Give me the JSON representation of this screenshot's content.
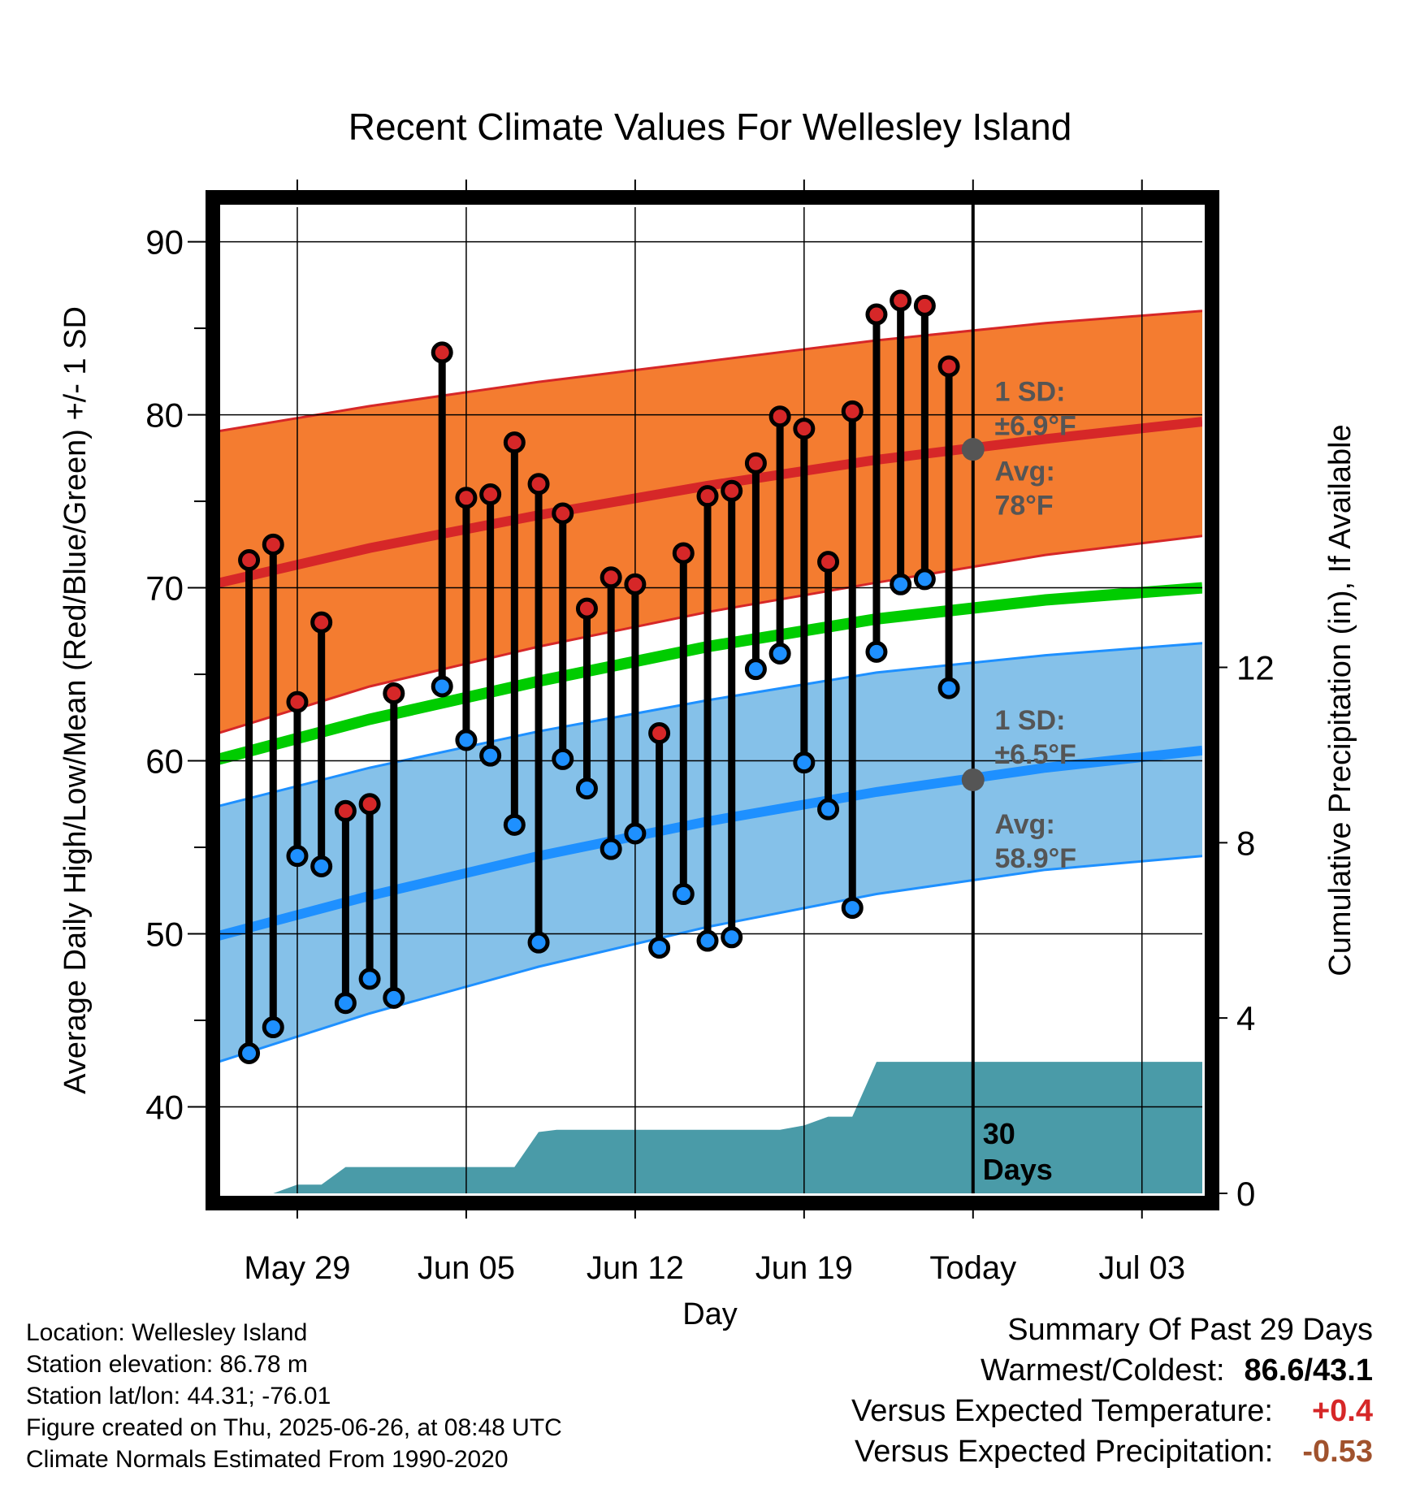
{
  "chart_data": {
    "type": "line",
    "title": "Recent Climate Values For Wellesley Island",
    "xlabel": "Day",
    "ylabel_left": "Average Daily High/Low/Mean (Red/Blue/Green) +/- 1 SD",
    "ylabel_right": "Cumulative Precipitation (in), If Available",
    "ylim_left": [
      35.0,
      92.0
    ],
    "ylim_right": [
      0,
      22.5
    ],
    "left_ticks": [
      40,
      50,
      60,
      70,
      80,
      90
    ],
    "right_ticks": [
      0,
      4,
      8,
      12
    ],
    "x_range": [
      "2025-05-25T12:00",
      "2025-07-05T12:00"
    ],
    "x_ticks": [
      {
        "date": "2025-05-29",
        "label": "May 29"
      },
      {
        "date": "2025-06-05",
        "label": "Jun 05"
      },
      {
        "date": "2025-06-12",
        "label": "Jun 12"
      },
      {
        "date": "2025-06-19",
        "label": "Jun 19"
      },
      {
        "date": "2025-06-26",
        "label": "Today"
      },
      {
        "date": "2025-07-03",
        "label": "Jul 03"
      }
    ],
    "grid": true,
    "today": "2025-06-26",
    "today_label": [
      "30",
      "Days"
    ],
    "normals": {
      "dates": [
        "2025-05-25T12:00",
        "2025-06-01",
        "2025-06-08",
        "2025-06-15",
        "2025-06-22",
        "2025-06-29",
        "2025-07-05T12:00"
      ],
      "high_mean": [
        70.2,
        72.3,
        74.2,
        75.9,
        77.4,
        78.6,
        79.6
      ],
      "high_upper": [
        79.0,
        80.5,
        81.9,
        83.1,
        84.3,
        85.3,
        86.0
      ],
      "high_lower": [
        61.5,
        64.3,
        66.6,
        68.6,
        70.3,
        71.9,
        73.0
      ],
      "mean": [
        60.0,
        62.4,
        64.6,
        66.6,
        68.2,
        69.3,
        70.0
      ],
      "low_mean": [
        49.8,
        52.2,
        54.5,
        56.5,
        58.2,
        59.6,
        60.6
      ],
      "low_upper": [
        57.3,
        59.6,
        61.7,
        63.5,
        65.1,
        66.1,
        66.8
      ],
      "low_lower": [
        42.5,
        45.4,
        48.1,
        50.4,
        52.3,
        53.7,
        54.5
      ]
    },
    "series": [
      {
        "name": "High",
        "dates": [
          "2025-05-27",
          "2025-05-28",
          "2025-05-29",
          "2025-05-30",
          "2025-05-31",
          "2025-06-01",
          "2025-06-02",
          "2025-06-04",
          "2025-06-05",
          "2025-06-06",
          "2025-06-07",
          "2025-06-08",
          "2025-06-09",
          "2025-06-10",
          "2025-06-11",
          "2025-06-12",
          "2025-06-13",
          "2025-06-14",
          "2025-06-15",
          "2025-06-16",
          "2025-06-17",
          "2025-06-18",
          "2025-06-19",
          "2025-06-20",
          "2025-06-21",
          "2025-06-22",
          "2025-06-23",
          "2025-06-24",
          "2025-06-25"
        ],
        "values": [
          71.6,
          72.5,
          63.4,
          68.0,
          57.1,
          57.5,
          63.9,
          83.6,
          75.2,
          75.4,
          78.4,
          76.0,
          74.3,
          68.8,
          70.6,
          70.2,
          61.6,
          72.0,
          75.3,
          75.6,
          77.2,
          79.9,
          79.2,
          71.5,
          80.2,
          85.8,
          86.6,
          86.3,
          82.8
        ]
      },
      {
        "name": "Low",
        "dates": [
          "2025-05-27",
          "2025-05-28",
          "2025-05-29",
          "2025-05-30",
          "2025-05-31",
          "2025-06-01",
          "2025-06-02",
          "2025-06-04",
          "2025-06-05",
          "2025-06-06",
          "2025-06-07",
          "2025-06-08",
          "2025-06-09",
          "2025-06-10",
          "2025-06-11",
          "2025-06-12",
          "2025-06-13",
          "2025-06-14",
          "2025-06-15",
          "2025-06-16",
          "2025-06-17",
          "2025-06-18",
          "2025-06-19",
          "2025-06-20",
          "2025-06-21",
          "2025-06-22",
          "2025-06-23",
          "2025-06-24",
          "2025-06-25"
        ],
        "values": [
          43.1,
          44.6,
          54.5,
          53.9,
          46.0,
          47.4,
          46.3,
          64.3,
          61.2,
          60.3,
          56.3,
          49.5,
          60.1,
          58.4,
          54.9,
          55.8,
          49.2,
          52.3,
          49.6,
          49.8,
          65.3,
          66.2,
          59.9,
          57.2,
          51.5,
          66.3,
          70.2,
          70.5,
          64.2
        ]
      },
      {
        "name": "Precipitation",
        "dates": [
          "2025-05-25T12:00",
          "2025-05-28",
          "2025-05-29",
          "2025-05-30",
          "2025-05-31",
          "2025-06-07",
          "2025-06-08",
          "2025-06-08T18:00",
          "2025-06-18",
          "2025-06-19",
          "2025-06-20",
          "2025-06-21",
          "2025-06-22",
          "2025-07-05T12:00"
        ],
        "values": [
          0.0,
          0.0,
          0.2,
          0.2,
          0.6,
          0.6,
          1.4,
          1.45,
          1.45,
          1.55,
          1.75,
          1.75,
          3.0,
          3.0
        ]
      }
    ],
    "annotations": [
      {
        "lines": [
          "1 SD:",
          "±6.9°F"
        ],
        "date": "2025-06-27",
        "value": 80.8
      },
      {
        "lines": [
          "Avg:",
          "78°F"
        ],
        "date": "2025-06-27",
        "value": 76.2
      },
      {
        "lines": [
          "1 SD:",
          "±6.5°F"
        ],
        "date": "2025-06-27",
        "value": 61.8
      },
      {
        "lines": [
          "Avg:",
          "58.9°F"
        ],
        "date": "2025-06-27",
        "value": 55.8
      }
    ],
    "today_markers": [
      78.0,
      58.9
    ]
  },
  "info": [
    "Location: Wellesley Island",
    "Station elevation: 86.78 m",
    "Station lat/lon: 44.31; -76.01",
    "Figure created on Thu, 2025-06-26, at 08:48 UTC",
    "Climate Normals Estimated From 1990-2020"
  ],
  "summary": {
    "title": "Summary Of Past 29 Days",
    "warm_label": "Warmest/Coldest:",
    "warm_value": "86.6/43.1",
    "temp_label": "Versus Expected Temperature:",
    "temp_value": "+0.4",
    "temp_color": "#d62728",
    "precip_label": "Versus Expected Precipitation:",
    "precip_value": "-0.53",
    "precip_color": "#a0522d"
  },
  "colors": {
    "high_band": "#f47c30",
    "high_line": "#d62728",
    "low_band": "#85c1e9",
    "low_line": "#1e90ff",
    "mean_line": "#00cc00",
    "precip": "#4a9ba8",
    "annotation": "#555555",
    "high_dot": "#d62728",
    "low_dot": "#1e90ff"
  }
}
